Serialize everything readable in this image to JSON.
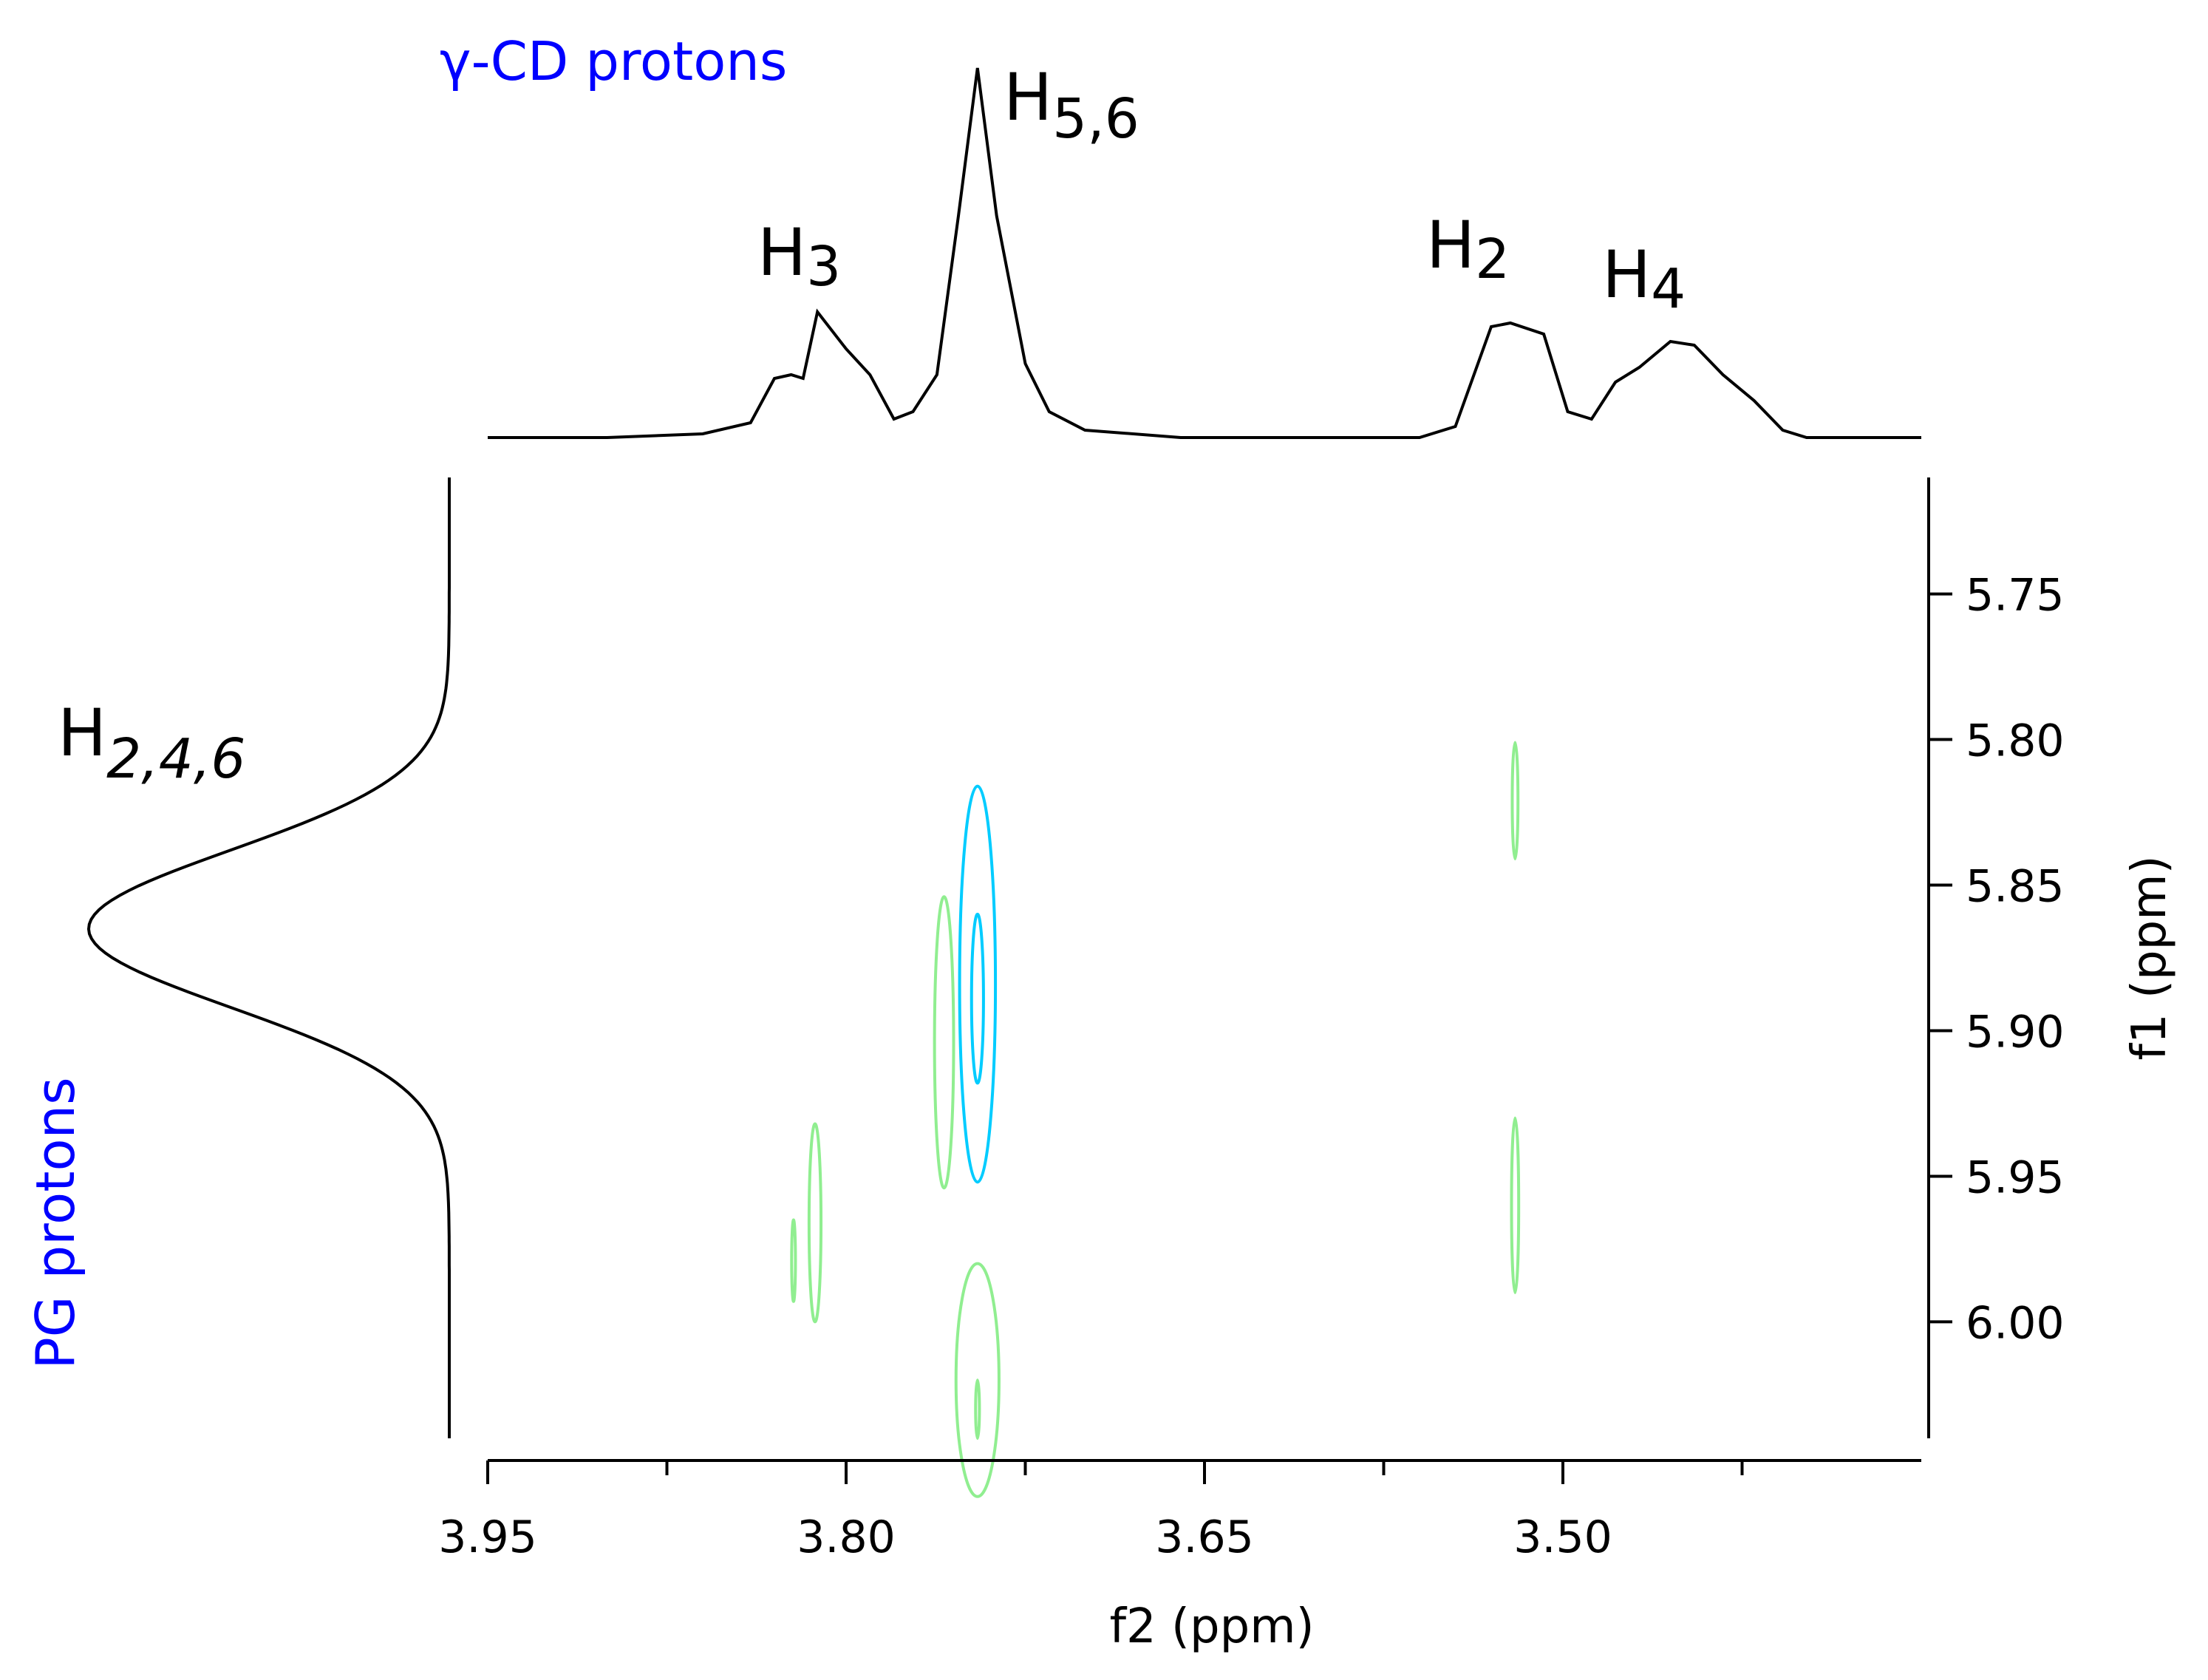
{
  "chart_data": {
    "type": "contour",
    "x_axis": {
      "label": "f2 (ppm)",
      "range": [
        3.95,
        3.35
      ],
      "reversed": true,
      "ticks": [
        3.95,
        3.8,
        3.65,
        3.5
      ],
      "tick_labels": [
        "3.95",
        "3.80",
        "3.65",
        "3.50"
      ],
      "minor_ticks": [
        3.875,
        3.725,
        3.575,
        3.425
      ]
    },
    "y_axis": {
      "label": "f1 (ppm)",
      "range": [
        5.71,
        6.04
      ],
      "reversed": true,
      "position": "right",
      "ticks": [
        5.75,
        5.8,
        5.85,
        5.9,
        5.95,
        6.0
      ],
      "tick_labels": [
        "5.75",
        "5.80",
        "5.85",
        "5.90",
        "5.95",
        "6.00"
      ]
    },
    "top_projection": {
      "group_label": "γ-CD protons",
      "group_color": "#0000ff",
      "peak_labels": [
        {
          "main": "H",
          "sub": "3",
          "italic_sub": false
        },
        {
          "main": "H",
          "sub": "5,6",
          "italic_sub": false
        },
        {
          "main": "H",
          "sub": "2",
          "italic_sub": false
        },
        {
          "main": "H",
          "sub": "4",
          "italic_sub": false
        }
      ],
      "trace": [
        [
          3.95,
          0.0
        ],
        [
          3.9,
          0.0
        ],
        [
          3.86,
          0.01
        ],
        [
          3.84,
          0.04
        ],
        [
          3.83,
          0.16
        ],
        [
          3.823,
          0.17
        ],
        [
          3.818,
          0.16
        ],
        [
          3.812,
          0.34
        ],
        [
          3.8,
          0.24
        ],
        [
          3.79,
          0.17
        ],
        [
          3.78,
          0.05
        ],
        [
          3.772,
          0.07
        ],
        [
          3.762,
          0.17
        ],
        [
          3.753,
          0.6
        ],
        [
          3.745,
          1.0
        ],
        [
          3.737,
          0.6
        ],
        [
          3.725,
          0.2
        ],
        [
          3.715,
          0.07
        ],
        [
          3.7,
          0.02
        ],
        [
          3.66,
          0.0
        ],
        [
          3.56,
          0.0
        ],
        [
          3.545,
          0.03
        ],
        [
          3.53,
          0.3
        ],
        [
          3.522,
          0.31
        ],
        [
          3.508,
          0.28
        ],
        [
          3.498,
          0.07
        ],
        [
          3.488,
          0.05
        ],
        [
          3.478,
          0.15
        ],
        [
          3.468,
          0.19
        ],
        [
          3.455,
          0.26
        ],
        [
          3.445,
          0.25
        ],
        [
          3.433,
          0.17
        ],
        [
          3.42,
          0.1
        ],
        [
          3.408,
          0.02
        ],
        [
          3.398,
          0.0
        ],
        [
          3.35,
          0.0
        ]
      ]
    },
    "left_projection": {
      "group_label": "PG protons",
      "group_color": "#0000ff",
      "peak_labels": [
        {
          "main": "H",
          "sub": "2,4,6",
          "italic_sub": true
        }
      ],
      "center": 5.865,
      "sigma": 0.027
    },
    "contours": [
      {
        "color": "#00ccff",
        "cx": 3.745,
        "cy": 5.884,
        "rx": 0.0075,
        "ry": 0.068
      },
      {
        "color": "#00ccff",
        "cx": 3.745,
        "cy": 5.889,
        "rx": 0.0025,
        "ry": 0.029
      },
      {
        "color": "#90ee90",
        "cx": 3.759,
        "cy": 5.904,
        "rx": 0.004,
        "ry": 0.05
      },
      {
        "color": "#90ee90",
        "cx": 3.52,
        "cy": 5.821,
        "rx": 0.0012,
        "ry": 0.02
      },
      {
        "color": "#90ee90",
        "cx": 3.52,
        "cy": 5.96,
        "rx": 0.0015,
        "ry": 0.03
      },
      {
        "color": "#90ee90",
        "cx": 3.813,
        "cy": 5.966,
        "rx": 0.0025,
        "ry": 0.034
      },
      {
        "color": "#90ee90",
        "cx": 3.822,
        "cy": 5.979,
        "rx": 0.0008,
        "ry": 0.014
      },
      {
        "color": "#90ee90",
        "cx": 3.745,
        "cy": 6.02,
        "rx": 0.009,
        "ry": 0.04
      },
      {
        "color": "#90ee90",
        "cx": 3.745,
        "cy": 6.03,
        "rx": 0.0008,
        "ry": 0.01
      }
    ]
  }
}
